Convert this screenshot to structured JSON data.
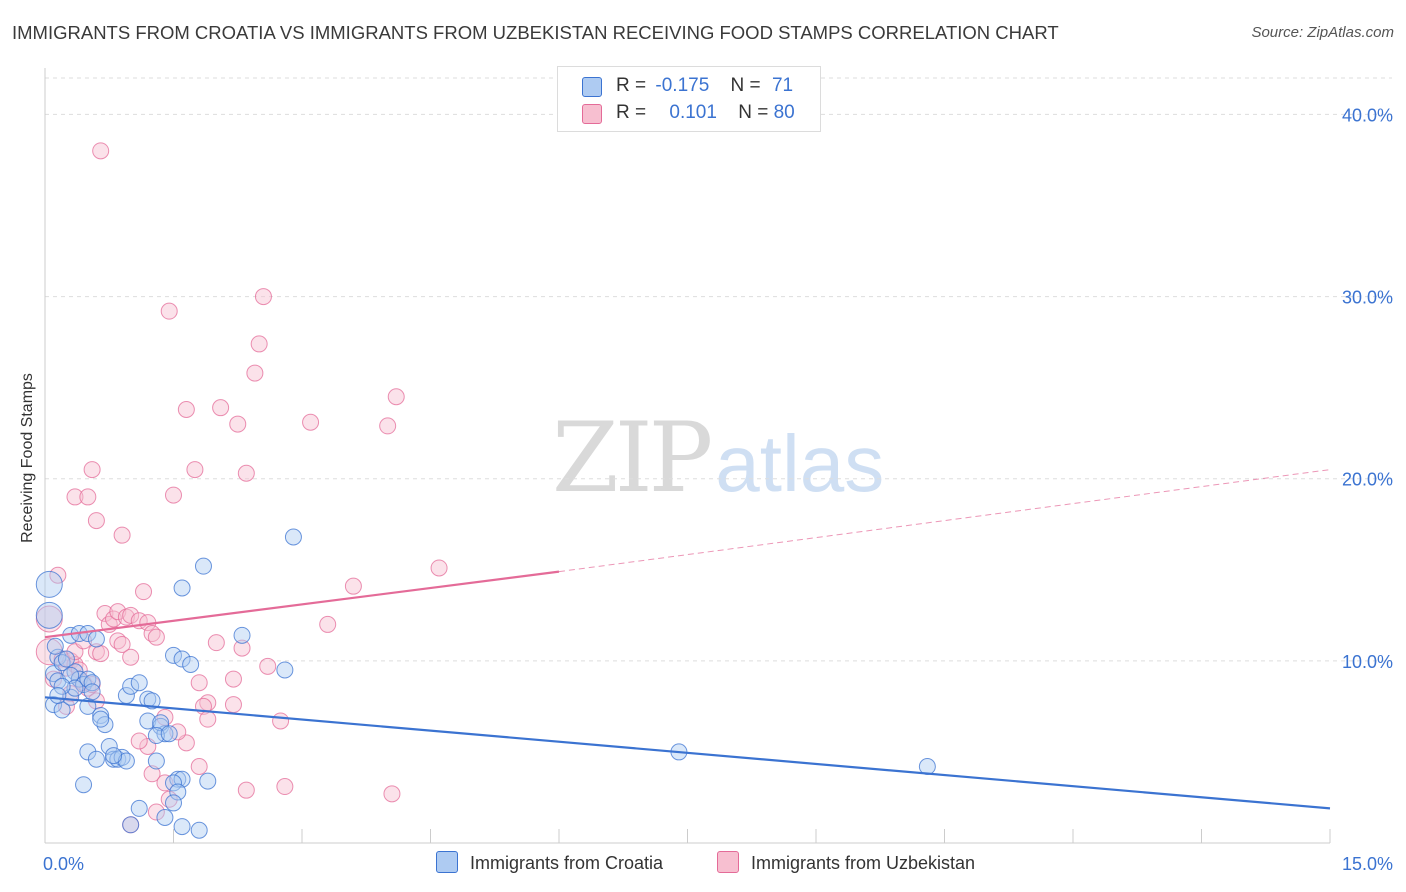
{
  "title": "IMMIGRANTS FROM CROATIA VS IMMIGRANTS FROM UZBEKISTAN RECEIVING FOOD STAMPS CORRELATION CHART",
  "source": "Source: ZipAtlas.com",
  "watermark": {
    "zip": "ZIP",
    "atlas": "atlas"
  },
  "legend_top": {
    "rows": [
      {
        "r_label": "R =",
        "r_value": "-0.175",
        "n_label": "N =",
        "n_value": "71",
        "color": "#aecbf2"
      },
      {
        "r_label": "R =",
        "r_value": "0.101",
        "n_label": "N =",
        "n_value": "80",
        "color": "#f7bfd0"
      }
    ]
  },
  "chart_data": {
    "type": "scatter",
    "title": "IMMIGRANTS FROM CROATIA VS IMMIGRANTS FROM UZBEKISTAN RECEIVING FOOD STAMPS CORRELATION CHART",
    "xlabel": "",
    "ylabel": "Receiving Food Stamps",
    "xlim": [
      0,
      15
    ],
    "ylim": [
      0,
      42
    ],
    "x_tick_labels": [
      "0.0%",
      "15.0%"
    ],
    "y_tick_labels": [
      "10.0%",
      "20.0%",
      "30.0%",
      "40.0%"
    ],
    "y_ticks": [
      10,
      20,
      30,
      40
    ],
    "grid": true,
    "legend_position": "bottom",
    "series": [
      {
        "name": "Immigrants from Croatia",
        "color": "#3b73d1",
        "fill": "#aecbf2",
        "trend": {
          "x": [
            0,
            15
          ],
          "y": [
            8.0,
            1.9
          ]
        },
        "points": [
          [
            0.05,
            14.2
          ],
          [
            0.05,
            12.5
          ],
          [
            0.1,
            9.3
          ],
          [
            0.15,
            8.9
          ],
          [
            0.1,
            7.6
          ],
          [
            0.2,
            7.3
          ],
          [
            0.15,
            10.2
          ],
          [
            0.3,
            8.0
          ],
          [
            0.35,
            9.4
          ],
          [
            0.4,
            9.0
          ],
          [
            0.45,
            8.7
          ],
          [
            0.3,
            11.4
          ],
          [
            0.4,
            11.5
          ],
          [
            0.5,
            11.5
          ],
          [
            0.6,
            11.2
          ],
          [
            0.5,
            9.0
          ],
          [
            0.55,
            8.8
          ],
          [
            0.5,
            7.5
          ],
          [
            0.65,
            7.0
          ],
          [
            0.7,
            6.5
          ],
          [
            0.65,
            6.8
          ],
          [
            0.5,
            5.0
          ],
          [
            0.6,
            4.6
          ],
          [
            0.75,
            5.3
          ],
          [
            0.8,
            4.6
          ],
          [
            0.85,
            4.6
          ],
          [
            0.9,
            4.7
          ],
          [
            0.95,
            4.5
          ],
          [
            0.8,
            4.8
          ],
          [
            0.45,
            3.2
          ],
          [
            0.95,
            8.1
          ],
          [
            1.0,
            8.6
          ],
          [
            1.1,
            8.8
          ],
          [
            1.2,
            7.9
          ],
          [
            1.25,
            7.8
          ],
          [
            1.2,
            6.7
          ],
          [
            1.35,
            6.4
          ],
          [
            1.4,
            6.0
          ],
          [
            1.35,
            6.6
          ],
          [
            1.3,
            5.9
          ],
          [
            1.6,
            14.0
          ],
          [
            1.85,
            15.2
          ],
          [
            1.5,
            10.3
          ],
          [
            1.6,
            10.1
          ],
          [
            1.7,
            9.8
          ],
          [
            1.55,
            3.5
          ],
          [
            1.6,
            3.5
          ],
          [
            1.5,
            3.3
          ],
          [
            1.55,
            2.8
          ],
          [
            1.5,
            2.2
          ],
          [
            1.4,
            1.4
          ],
          [
            1.1,
            1.9
          ],
          [
            1.0,
            1.0
          ],
          [
            1.6,
            0.9
          ],
          [
            1.8,
            0.7
          ],
          [
            1.9,
            3.4
          ],
          [
            2.3,
            11.4
          ],
          [
            2.8,
            9.5
          ],
          [
            2.9,
            16.8
          ],
          [
            0.2,
            9.9
          ],
          [
            0.25,
            10.1
          ],
          [
            0.3,
            9.2
          ],
          [
            0.35,
            8.5
          ],
          [
            0.2,
            8.6
          ],
          [
            0.55,
            8.3
          ],
          [
            0.15,
            8.1
          ],
          [
            0.12,
            10.8
          ],
          [
            1.45,
            6.0
          ],
          [
            1.3,
            4.5
          ],
          [
            7.4,
            5.0
          ],
          [
            10.3,
            4.2
          ]
        ]
      },
      {
        "name": "Immigrants from Uzbekistan",
        "color": "#e46b98",
        "fill": "#f7bfd0",
        "trend_solid": {
          "x": [
            0,
            6
          ],
          "y": [
            11.3,
            14.9
          ]
        },
        "trend_dashed": {
          "x": [
            6,
            15
          ],
          "y": [
            14.9,
            20.5
          ]
        },
        "points": [
          [
            0.05,
            12.3
          ],
          [
            0.05,
            10.5
          ],
          [
            0.1,
            9.0
          ],
          [
            0.15,
            14.7
          ],
          [
            0.2,
            10.1
          ],
          [
            0.25,
            9.6
          ],
          [
            0.3,
            10.0
          ],
          [
            0.35,
            9.8
          ],
          [
            0.4,
            9.5
          ],
          [
            0.45,
            8.8
          ],
          [
            0.5,
            8.5
          ],
          [
            0.55,
            8.7
          ],
          [
            0.6,
            7.8
          ],
          [
            0.3,
            8.2
          ],
          [
            0.25,
            7.5
          ],
          [
            0.35,
            10.5
          ],
          [
            0.4,
            9.0
          ],
          [
            0.45,
            11.1
          ],
          [
            0.6,
            10.5
          ],
          [
            0.65,
            10.4
          ],
          [
            0.7,
            12.6
          ],
          [
            0.75,
            12.0
          ],
          [
            0.8,
            12.3
          ],
          [
            0.85,
            12.7
          ],
          [
            0.85,
            11.1
          ],
          [
            0.9,
            10.9
          ],
          [
            0.95,
            12.4
          ],
          [
            1.0,
            12.5
          ],
          [
            1.0,
            10.2
          ],
          [
            1.1,
            12.2
          ],
          [
            1.2,
            12.1
          ],
          [
            1.25,
            11.5
          ],
          [
            1.3,
            11.3
          ],
          [
            1.15,
            13.8
          ],
          [
            0.35,
            19.0
          ],
          [
            0.5,
            19.0
          ],
          [
            0.6,
            17.7
          ],
          [
            0.9,
            16.9
          ],
          [
            0.55,
            20.5
          ],
          [
            0.65,
            38.0
          ],
          [
            1.45,
            29.2
          ],
          [
            1.65,
            23.8
          ],
          [
            1.75,
            20.5
          ],
          [
            1.5,
            19.1
          ],
          [
            2.05,
            23.9
          ],
          [
            2.25,
            23.0
          ],
          [
            2.35,
            20.3
          ],
          [
            2.45,
            25.8
          ],
          [
            2.5,
            27.4
          ],
          [
            2.55,
            30.0
          ],
          [
            3.1,
            23.1
          ],
          [
            4.0,
            22.9
          ],
          [
            4.1,
            24.5
          ],
          [
            3.6,
            14.1
          ],
          [
            4.6,
            15.1
          ],
          [
            3.3,
            12.0
          ],
          [
            2.0,
            11.0
          ],
          [
            2.2,
            9.0
          ],
          [
            2.3,
            10.7
          ],
          [
            2.6,
            9.7
          ],
          [
            2.75,
            6.7
          ],
          [
            1.8,
            8.8
          ],
          [
            1.9,
            7.7
          ],
          [
            1.85,
            7.5
          ],
          [
            2.2,
            7.6
          ],
          [
            1.9,
            6.8
          ],
          [
            1.65,
            5.5
          ],
          [
            1.55,
            6.1
          ],
          [
            1.4,
            6.9
          ],
          [
            1.2,
            5.3
          ],
          [
            1.1,
            5.6
          ],
          [
            1.25,
            3.8
          ],
          [
            1.8,
            4.2
          ],
          [
            1.4,
            3.3
          ],
          [
            1.45,
            2.4
          ],
          [
            1.3,
            1.7
          ],
          [
            1.0,
            1.0
          ],
          [
            2.35,
            2.9
          ],
          [
            2.8,
            3.1
          ],
          [
            4.05,
            2.7
          ]
        ]
      }
    ]
  }
}
